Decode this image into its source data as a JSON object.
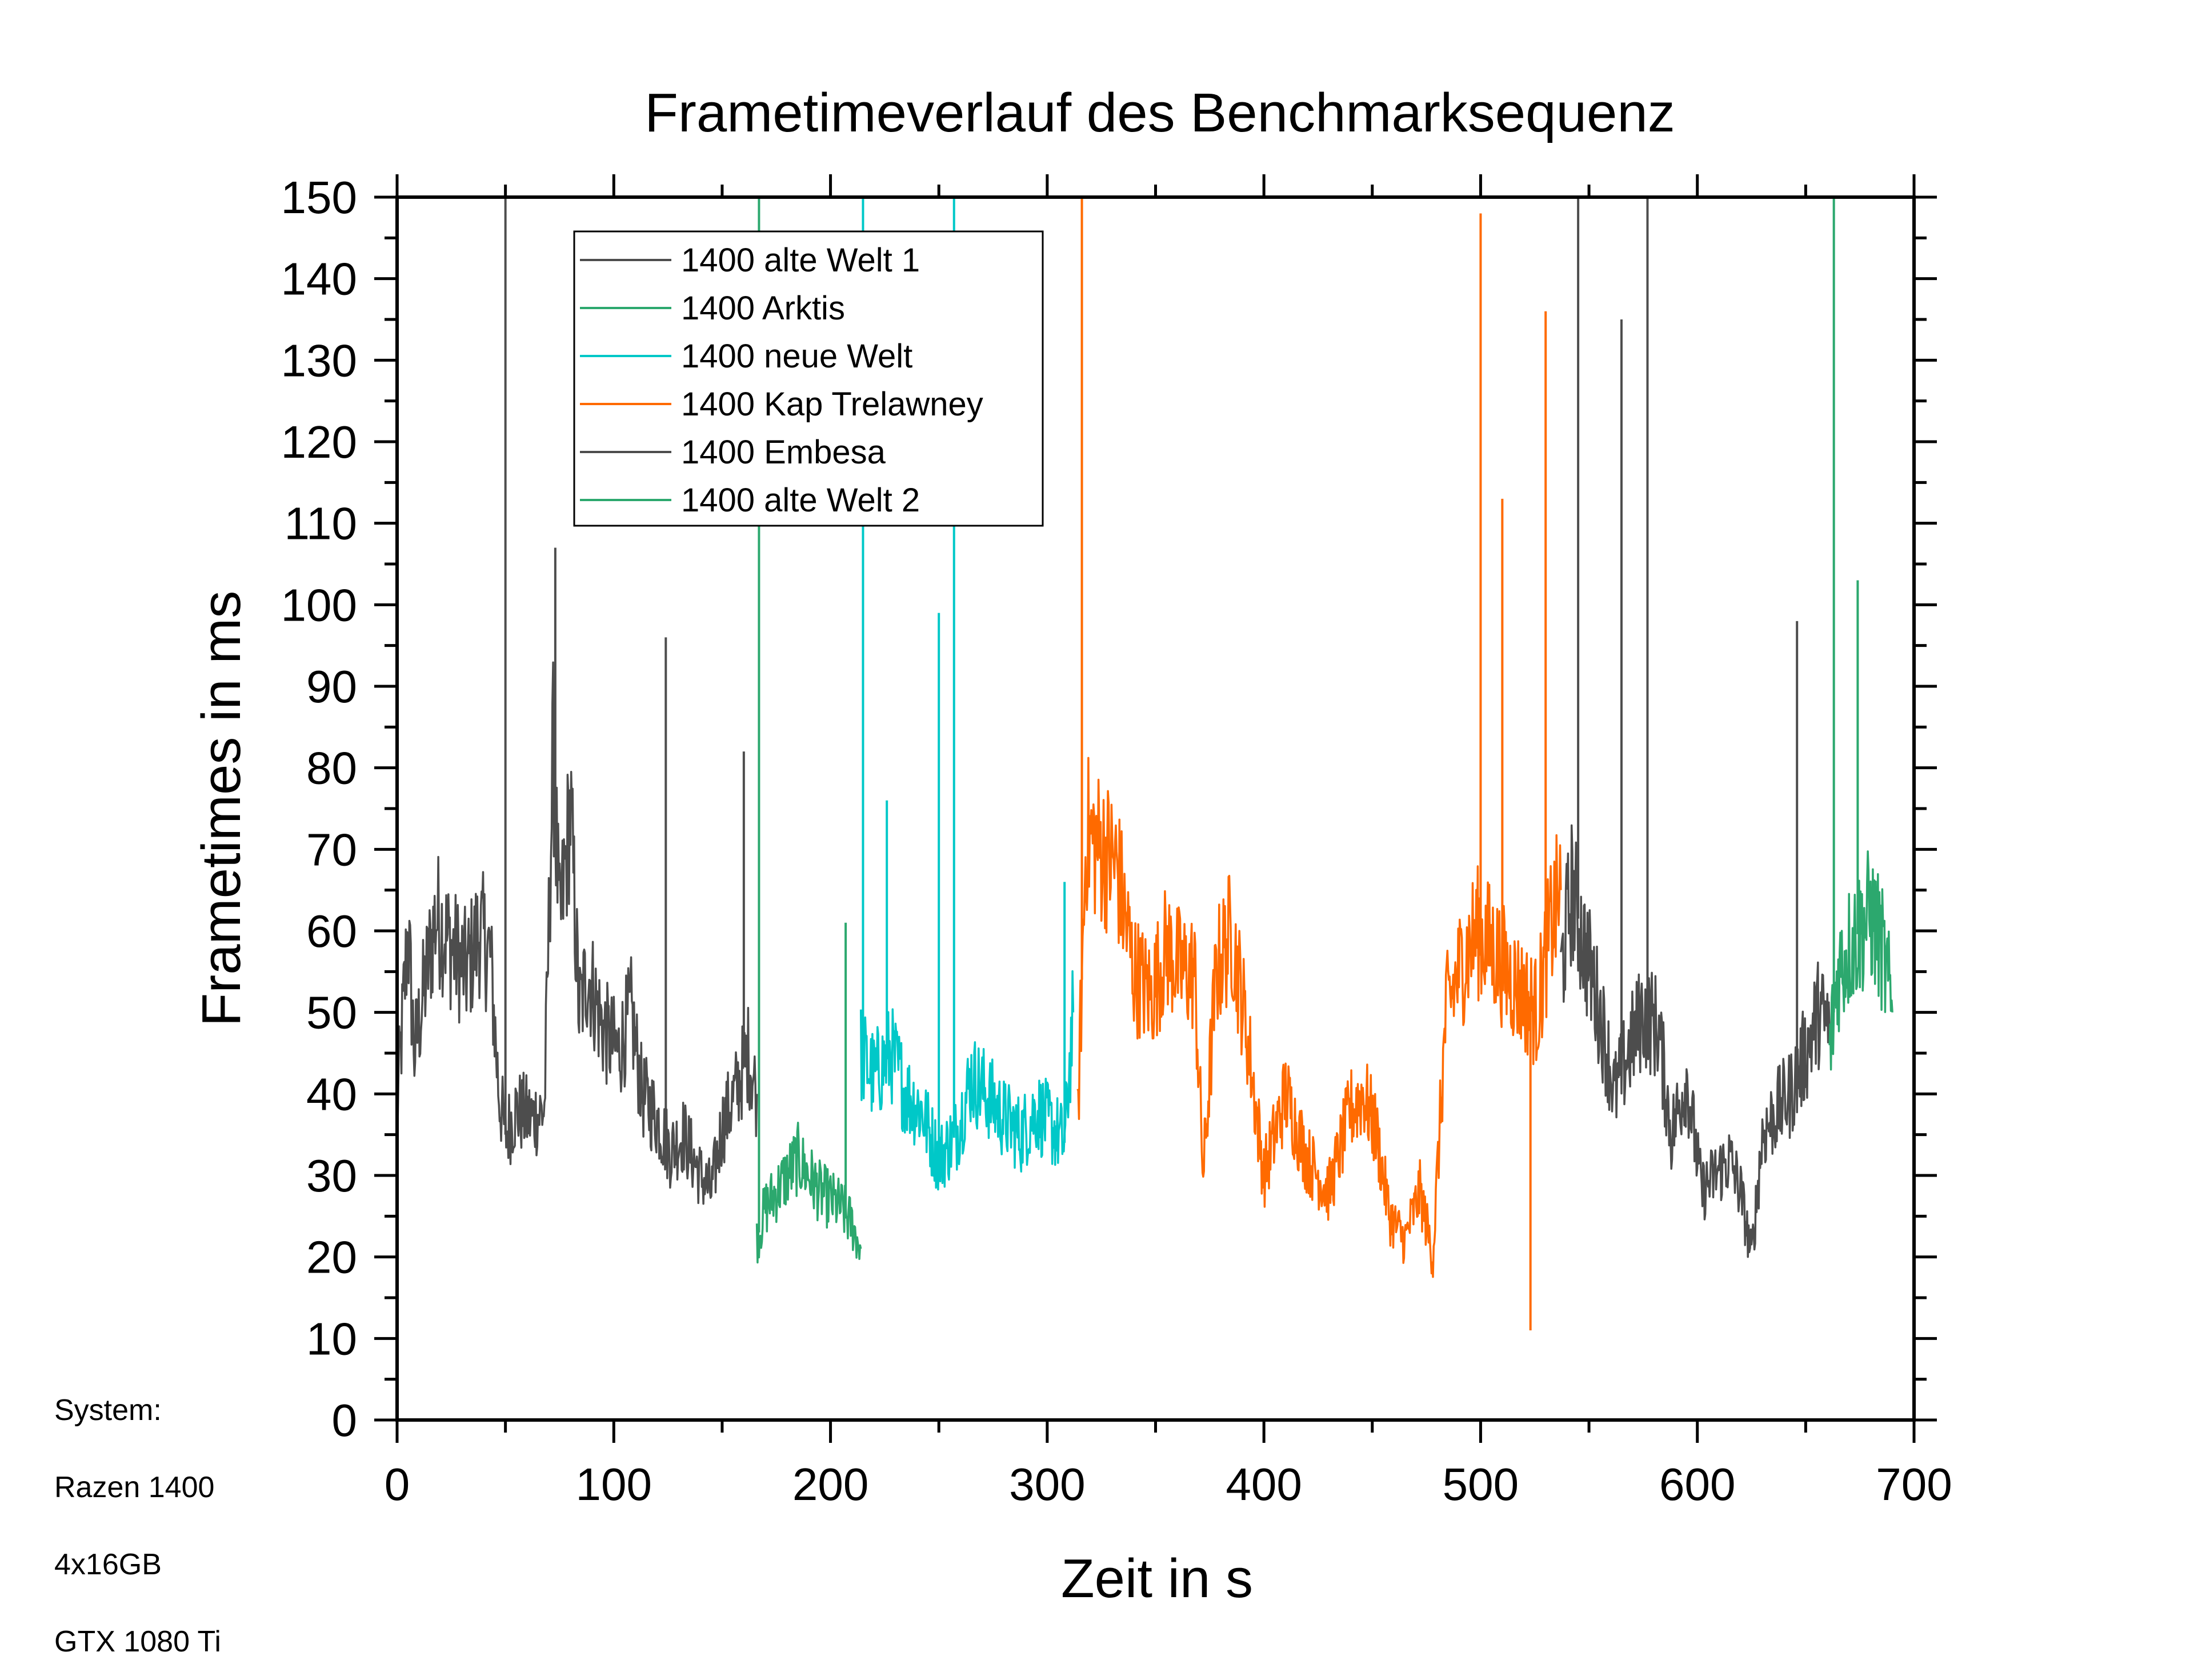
{
  "chart_data": {
    "type": "line",
    "title": "Frametimeverlauf des Benchmarksequenz",
    "xlabel": "Zeit in s",
    "ylabel": "Frametimes in ms",
    "xlim": [
      0,
      700
    ],
    "ylim": [
      0,
      150
    ],
    "xticks": [
      0,
      100,
      200,
      300,
      400,
      500,
      600,
      700
    ],
    "yticks": [
      0,
      10,
      20,
      30,
      40,
      50,
      60,
      70,
      80,
      90,
      100,
      110,
      120,
      130,
      140,
      150
    ],
    "legend_position": "top-left",
    "series": [
      {
        "name": "1400 alte Welt 1",
        "color": "#4d4d4d",
        "x": [
          0,
          5,
          8,
          12,
          18,
          25,
          32,
          38,
          43,
          47,
          50,
          55,
          62,
          68,
          72,
          75,
          80,
          84,
          88,
          95,
          102,
          108,
          113,
          120,
          126,
          132,
          140,
          145,
          150,
          156,
          162,
          166
        ],
        "y": [
          38,
          60,
          45,
          52,
          62,
          58,
          55,
          60,
          57,
          40,
          35,
          38,
          37,
          38,
          82,
          60,
          75,
          50,
          55,
          48,
          45,
          50,
          40,
          37,
          33,
          35,
          30,
          28,
          36,
          40,
          45,
          40
        ],
        "spikes": [
          {
            "x": 50,
            "y": 150
          },
          {
            "x": 73,
            "y": 107
          },
          {
            "x": 124,
            "y": 96
          },
          {
            "x": 160,
            "y": 82
          }
        ]
      },
      {
        "name": "1400 Arktis",
        "color": "#2ca86e",
        "x": [
          166,
          170,
          175,
          180,
          185,
          190,
          195,
          200,
          205,
          210,
          214
        ],
        "y": [
          22,
          26,
          28,
          30,
          32,
          30,
          28,
          27,
          26,
          24,
          21
        ],
        "spikes": [
          {
            "x": 167,
            "y": 150
          },
          {
            "x": 207,
            "y": 61
          }
        ]
      },
      {
        "name": "1400 neue Welt",
        "color": "#00c8c8",
        "x": [
          214,
          220,
          228,
          235,
          242,
          250,
          258,
          265,
          272,
          280,
          288,
          295,
          302,
          308,
          312
        ],
        "y": [
          45,
          42,
          45,
          40,
          38,
          32,
          35,
          42,
          40,
          37,
          35,
          38,
          36,
          34,
          50
        ],
        "spikes": [
          {
            "x": 215,
            "y": 150
          },
          {
            "x": 226,
            "y": 76
          },
          {
            "x": 250,
            "y": 99
          },
          {
            "x": 257,
            "y": 150
          },
          {
            "x": 308,
            "y": 66
          }
        ]
      },
      {
        "name": "1400 Kap Trelawney",
        "color": "#ff6a00",
        "x": [
          314,
          318,
          325,
          332,
          340,
          348,
          355,
          362,
          368,
          372,
          378,
          385,
          392,
          400,
          410,
          420,
          430,
          440,
          446,
          452,
          458,
          465,
          472,
          478,
          484,
          490,
          498,
          505,
          512,
          520,
          526,
          532,
          537
        ],
        "y": [
          36,
          72,
          70,
          68,
          55,
          52,
          58,
          55,
          55,
          30,
          55,
          60,
          48,
          30,
          40,
          32,
          28,
          38,
          40,
          35,
          25,
          22,
          28,
          20,
          50,
          55,
          60,
          58,
          55,
          52,
          50,
          60,
          65
        ],
        "spikes": [
          {
            "x": 316,
            "y": 150
          },
          {
            "x": 500,
            "y": 148
          },
          {
            "x": 510,
            "y": 113
          },
          {
            "x": 530,
            "y": 136
          },
          {
            "x": 523,
            "y": 11
          }
        ]
      },
      {
        "name": "1400 Embesa",
        "color": "#4d4d4d",
        "x": [
          537,
          542,
          548,
          555,
          562,
          568,
          575,
          582,
          588,
          595,
          602,
          608,
          615,
          620,
          625,
          630,
          637,
          643,
          650,
          656,
          661
        ],
        "y": [
          55,
          65,
          58,
          50,
          40,
          45,
          50,
          48,
          35,
          42,
          28,
          30,
          32,
          28,
          20,
          35,
          38,
          40,
          45,
          50,
          48
        ],
        "spikes": [
          {
            "x": 545,
            "y": 150
          },
          {
            "x": 565,
            "y": 135
          },
          {
            "x": 577,
            "y": 150
          },
          {
            "x": 646,
            "y": 98
          }
        ]
      },
      {
        "name": "1400 alte Welt 2",
        "color": "#2ca86e",
        "x": [
          661,
          665,
          670,
          675,
          680,
          685,
          690
        ],
        "y": [
          45,
          55,
          58,
          60,
          62,
          58,
          50
        ],
        "spikes": [
          {
            "x": 663,
            "y": 150
          },
          {
            "x": 674,
            "y": 103
          }
        ]
      }
    ]
  },
  "system_info": {
    "label": "System:",
    "cpu": "Razen 1400",
    "ram": "4x16GB",
    "gpu": "GTX 1080 Ti"
  }
}
